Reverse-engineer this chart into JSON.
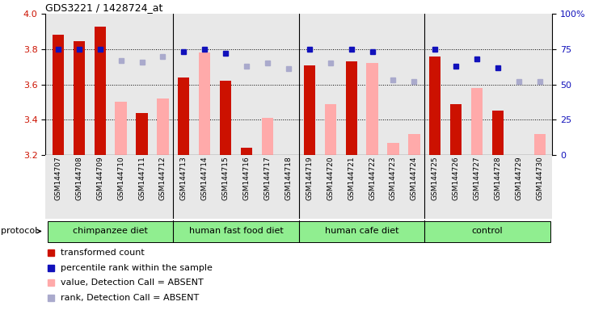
{
  "title": "GDS3221 / 1428724_at",
  "samples": [
    "GSM144707",
    "GSM144708",
    "GSM144709",
    "GSM144710",
    "GSM144711",
    "GSM144712",
    "GSM144713",
    "GSM144714",
    "GSM144715",
    "GSM144716",
    "GSM144717",
    "GSM144718",
    "GSM144719",
    "GSM144720",
    "GSM144721",
    "GSM144722",
    "GSM144723",
    "GSM144724",
    "GSM144725",
    "GSM144726",
    "GSM144727",
    "GSM144728",
    "GSM144729",
    "GSM144730"
  ],
  "red_values": [
    3.88,
    3.845,
    3.93,
    null,
    3.44,
    null,
    3.64,
    null,
    3.62,
    3.24,
    null,
    null,
    3.71,
    null,
    3.73,
    null,
    null,
    null,
    3.76,
    3.49,
    null,
    3.45,
    null,
    null
  ],
  "pink_values": [
    null,
    null,
    null,
    3.5,
    null,
    3.52,
    null,
    3.78,
    null,
    null,
    3.41,
    3.2,
    null,
    3.49,
    null,
    3.72,
    3.27,
    3.32,
    null,
    null,
    3.58,
    null,
    3.2,
    3.32
  ],
  "blue_values": [
    75,
    75,
    75,
    null,
    null,
    null,
    73,
    75,
    72,
    null,
    null,
    null,
    75,
    null,
    75,
    73,
    null,
    null,
    75,
    63,
    68,
    62,
    null,
    null
  ],
  "lavender_values": [
    null,
    null,
    null,
    67,
    66,
    70,
    null,
    null,
    null,
    63,
    65,
    61,
    null,
    65,
    null,
    null,
    53,
    52,
    null,
    null,
    null,
    null,
    52,
    52
  ],
  "groups": [
    {
      "label": "chimpanzee diet",
      "start": 0,
      "end": 6
    },
    {
      "label": "human fast food diet",
      "start": 6,
      "end": 12
    },
    {
      "label": "human cafe diet",
      "start": 12,
      "end": 18
    },
    {
      "label": "control",
      "start": 18,
      "end": 24
    }
  ],
  "ylim_left": [
    3.2,
    4.0
  ],
  "ylim_right": [
    0,
    100
  ],
  "yticks_left": [
    3.2,
    3.4,
    3.6,
    3.8,
    4.0
  ],
  "yticks_right": [
    0,
    25,
    50,
    75,
    100
  ],
  "ytick_labels_right": [
    "0",
    "25",
    "50",
    "75",
    "100%"
  ],
  "red_color": "#cc1100",
  "pink_color": "#ffaaaa",
  "blue_color": "#1111bb",
  "lavender_color": "#aaaacc",
  "bar_width": 0.55,
  "bg_color": "#e8e8e8",
  "group_color": "#90ee90"
}
